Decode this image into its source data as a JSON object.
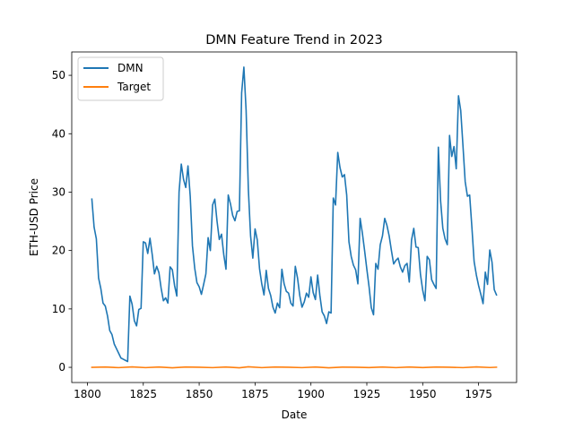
{
  "chart_data": {
    "type": "line",
    "title": "DMN Feature Trend in 2023",
    "xlabel": "Date",
    "ylabel": "ETH-USD Price",
    "xlim": [
      1793,
      1992
    ],
    "ylim": [
      -2.6,
      54
    ],
    "xticks": [
      1800,
      1825,
      1850,
      1875,
      1900,
      1925,
      1950,
      1975
    ],
    "yticks": [
      0,
      10,
      20,
      30,
      40,
      50
    ],
    "grid": false,
    "legend_position": "upper-left",
    "series": [
      {
        "name": "DMN",
        "color": "#1f77b4",
        "x": [
          1802,
          1803,
          1804,
          1805,
          1806,
          1807,
          1808,
          1809,
          1810,
          1811,
          1812,
          1813,
          1814,
          1815,
          1816,
          1817,
          1818,
          1819,
          1820,
          1821,
          1822,
          1823,
          1824,
          1825,
          1826,
          1827,
          1828,
          1829,
          1830,
          1831,
          1832,
          1833,
          1834,
          1835,
          1836,
          1837,
          1838,
          1839,
          1840,
          1841,
          1842,
          1843,
          1844,
          1845,
          1846,
          1847,
          1848,
          1849,
          1850,
          1851,
          1852,
          1853,
          1854,
          1855,
          1856,
          1857,
          1858,
          1859,
          1860,
          1861,
          1862,
          1863,
          1864,
          1865,
          1866,
          1867,
          1868,
          1869,
          1870,
          1871,
          1872,
          1873,
          1874,
          1875,
          1876,
          1877,
          1878,
          1879,
          1880,
          1881,
          1882,
          1883,
          1884,
          1885,
          1886,
          1887,
          1888,
          1889,
          1890,
          1891,
          1892,
          1893,
          1894,
          1895,
          1896,
          1897,
          1898,
          1899,
          1900,
          1901,
          1902,
          1903,
          1904,
          1905,
          1906,
          1907,
          1908,
          1909,
          1910,
          1911,
          1912,
          1913,
          1914,
          1915,
          1916,
          1917,
          1918,
          1919,
          1920,
          1921,
          1922,
          1923,
          1924,
          1925,
          1926,
          1927,
          1928,
          1929,
          1930,
          1931,
          1932,
          1933,
          1934,
          1935,
          1936,
          1937,
          1938,
          1939,
          1940,
          1941,
          1942,
          1943,
          1944,
          1945,
          1946,
          1947,
          1948,
          1949,
          1950,
          1951,
          1952,
          1953,
          1954,
          1955,
          1956,
          1957,
          1958,
          1959,
          1960,
          1961,
          1962,
          1963,
          1964,
          1965,
          1966,
          1967,
          1968,
          1969,
          1970,
          1971,
          1972,
          1973,
          1974,
          1975,
          1976,
          1977,
          1978,
          1979,
          1980,
          1981,
          1982,
          1983
        ],
        "values": [
          28.8,
          24.0,
          22.0,
          15.3,
          13.5,
          11.0,
          10.5,
          8.8,
          6.3,
          5.6,
          4.0,
          3.2,
          2.4,
          1.6,
          1.4,
          1.2,
          1.0,
          12.2,
          10.8,
          8.0,
          7.1,
          9.9,
          10.1,
          21.5,
          21.3,
          19.5,
          22.1,
          19.3,
          16.0,
          17.3,
          16.2,
          13.5,
          11.4,
          11.9,
          11.0,
          17.2,
          16.7,
          14.0,
          12.2,
          30.0,
          34.8,
          32.2,
          30.8,
          34.5,
          29.3,
          20.8,
          17.0,
          14.5,
          13.8,
          12.5,
          14.2,
          16.0,
          22.2,
          20.0,
          27.8,
          28.8,
          25.0,
          21.9,
          22.8,
          19.3,
          16.8,
          29.5,
          28.0,
          26.0,
          25.1,
          26.7,
          26.8,
          47.0,
          51.4,
          44.0,
          30.5,
          22.5,
          18.7,
          23.7,
          21.8,
          16.9,
          14.3,
          12.4,
          16.6,
          13.5,
          12.3,
          10.3,
          9.3,
          11.0,
          10.2,
          16.8,
          14.3,
          13.0,
          12.7,
          11.0,
          10.5,
          17.3,
          15.3,
          12.3,
          10.3,
          11.2,
          12.7,
          12.0,
          15.5,
          12.8,
          11.6,
          15.8,
          12.3,
          9.5,
          8.8,
          7.5,
          9.5,
          9.3,
          29.0,
          27.8,
          36.8,
          34.2,
          32.6,
          33.0,
          29.5,
          21.5,
          19.0,
          17.5,
          16.7,
          14.3,
          25.5,
          23.0,
          20.0,
          16.8,
          13.8,
          10.2,
          9.0,
          17.8,
          16.8,
          21.0,
          22.5,
          25.5,
          24.3,
          22.5,
          20.0,
          17.7,
          18.3,
          18.7,
          17.2,
          16.3,
          17.4,
          17.8,
          14.6,
          21.8,
          23.8,
          20.6,
          20.5,
          15.9,
          13.2,
          11.4,
          19.0,
          18.4,
          15.0,
          14.2,
          13.5,
          37.7,
          28.5,
          23.8,
          22.0,
          21.0,
          39.7,
          36.1,
          37.8,
          34.0,
          46.5,
          44.0,
          38.0,
          31.8,
          29.3,
          29.5,
          24.0,
          18.1,
          15.8,
          14.0,
          12.5,
          10.9,
          16.3,
          14.2,
          20.1,
          18.0,
          13.3,
          12.4
        ]
      },
      {
        "name": "Target",
        "color": "#ff7f0e",
        "x": [
          1802,
          1808,
          1814,
          1820,
          1826,
          1832,
          1838,
          1844,
          1850,
          1856,
          1862,
          1868,
          1872,
          1878,
          1884,
          1890,
          1896,
          1902,
          1908,
          1914,
          1920,
          1926,
          1932,
          1938,
          1944,
          1950,
          1956,
          1962,
          1968,
          1974,
          1980,
          1983
        ],
        "values": [
          0.0,
          0.05,
          -0.05,
          0.08,
          -0.05,
          0.05,
          -0.08,
          0.05,
          0.02,
          -0.05,
          0.05,
          -0.08,
          0.1,
          -0.05,
          0.05,
          0.02,
          -0.05,
          0.06,
          -0.08,
          0.04,
          0.02,
          -0.04,
          0.05,
          -0.05,
          0.06,
          -0.04,
          0.05,
          0.02,
          -0.05,
          0.08,
          -0.03,
          0.02
        ]
      }
    ]
  }
}
